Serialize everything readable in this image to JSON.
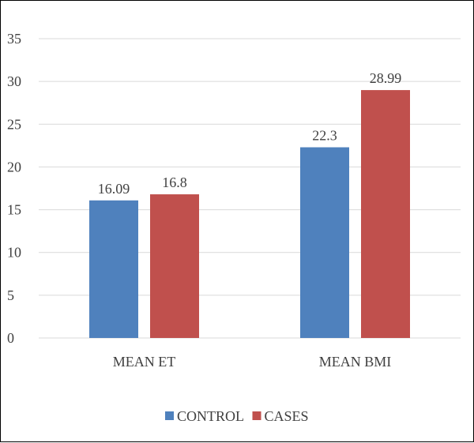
{
  "chart_data": {
    "type": "bar",
    "categories": [
      "MEAN ET",
      "MEAN BMI"
    ],
    "series": [
      {
        "name": "CONTROL",
        "color": "#4f81bd",
        "values": [
          16.09,
          22.3
        ],
        "labels": [
          "16.09",
          "22.3"
        ]
      },
      {
        "name": "CASES",
        "color": "#c0504d",
        "values": [
          16.8,
          28.99
        ],
        "labels": [
          "16.8",
          "28.99"
        ]
      }
    ],
    "ylim": [
      0,
      35
    ],
    "yticks": [
      0,
      5,
      10,
      15,
      20,
      25,
      30,
      35
    ],
    "grid": true,
    "legend": "bottom"
  }
}
